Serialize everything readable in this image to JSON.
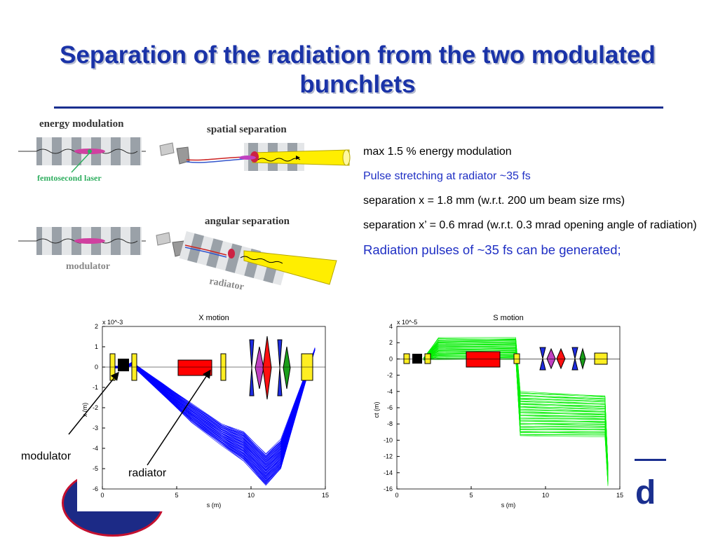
{
  "slide": {
    "title": "Separation of the radiation from the two modulated bunchlets",
    "accent_color": "#1a33a8"
  },
  "schematic": {
    "energy_modulation": "energy modulation",
    "femtosecond_laser": "femtosecond laser",
    "spatial_separation": "spatial separation",
    "angular_separation": "angular separation",
    "modulator": "modulator",
    "radiator": "radiator"
  },
  "bullets": [
    "max 1.5 % energy modulation",
    "Pulse stretching at radiator ~35 fs",
    "separation x = 1.8 mm (w.r.t. 200 um beam size rms)",
    "separation x’ = 0.6 mrad (w.r.t. 0.3 mrad opening angle of radiation)",
    "Radiation pulses of ~35 fs can be generated;"
  ],
  "annotations": {
    "modulator": "modulator",
    "radiator": "radiator"
  },
  "chart_data": [
    {
      "type": "line",
      "title": "X motion",
      "xlabel": "s (m)",
      "ylabel": "x (m)",
      "y_multiplier": "x 10^-3",
      "xlim": [
        0,
        15
      ],
      "ylim": [
        -6,
        2
      ],
      "xticks": [
        "0",
        "5",
        "10",
        "15"
      ],
      "yticks": [
        "2",
        "1",
        "0",
        "-1",
        "-2",
        "-3",
        "-4",
        "-5",
        "-6"
      ],
      "series_color": "#0000ff",
      "series": [
        {
          "x": [
            0.5,
            1.5,
            2.0,
            4.0,
            6.0,
            8.0,
            9.5,
            11.0,
            12.0,
            14.3
          ],
          "y": [
            0,
            0,
            0.2,
            -0.8,
            -1.8,
            -2.8,
            -3.2,
            -4.3,
            -3.6,
            0.9
          ]
        },
        {
          "x": [
            0.5,
            1.5,
            2.0,
            4.0,
            6.0,
            8.0,
            9.5,
            11.0,
            12.0,
            14.3
          ],
          "y": [
            0,
            0,
            0.1,
            -1.3,
            -2.7,
            -3.8,
            -4.6,
            -5.8,
            -5.0,
            0.9
          ]
        }
      ]
    },
    {
      "type": "line",
      "title": "S motion",
      "xlabel": "s (m)",
      "ylabel": "ct (m)",
      "y_multiplier": "x 10^-5",
      "xlim": [
        0,
        15
      ],
      "ylim": [
        -16,
        4
      ],
      "xticks": [
        "0",
        "5",
        "10",
        "15"
      ],
      "yticks": [
        "4",
        "2",
        "0",
        "-2",
        "-4",
        "-6",
        "-8",
        "-10",
        "-12",
        "-14",
        "-16"
      ],
      "series_color": "#00ee00",
      "series": [
        {
          "x": [
            1.8,
            2.8,
            8.0,
            8.3,
            14.0,
            14.2
          ],
          "y": [
            0,
            2.5,
            2.5,
            -4.0,
            -4.5,
            -13.0
          ]
        },
        {
          "x": [
            1.8,
            2.8,
            8.0,
            8.3,
            14.0,
            14.2
          ],
          "y": [
            0,
            0,
            0,
            -9.5,
            -9.5,
            -15.5
          ]
        }
      ]
    }
  ]
}
